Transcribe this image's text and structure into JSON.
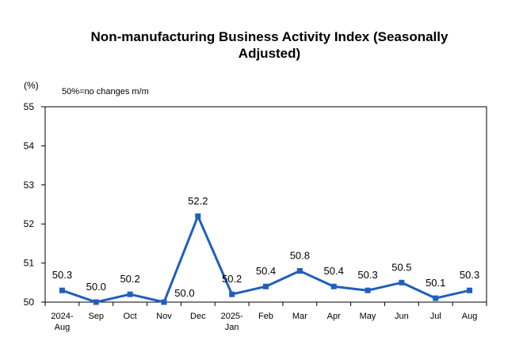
{
  "chart_data": {
    "type": "line",
    "title_line1": "Non-manufacturing Business Activity Index (Seasonally",
    "title_line2": "Adjusted)",
    "unit": "(%)",
    "note": "50%=no changes m/m",
    "categories": [
      [
        "2024-",
        "Aug"
      ],
      [
        "Sep"
      ],
      [
        "Oct"
      ],
      [
        "Nov"
      ],
      [
        "Dec"
      ],
      [
        "2025-",
        "Jan"
      ],
      [
        "Feb"
      ],
      [
        "Mar"
      ],
      [
        "Apr"
      ],
      [
        "May"
      ],
      [
        "Jun"
      ],
      [
        "Jul"
      ],
      [
        "Aug"
      ]
    ],
    "values": [
      50.3,
      50.0,
      50.2,
      50.0,
      52.2,
      50.2,
      50.4,
      50.8,
      50.4,
      50.3,
      50.5,
      50.1,
      50.3
    ],
    "data_labels": [
      "50.3",
      "50.0",
      "50.2",
      "50.0",
      "52.2",
      "50.2",
      "50.4",
      "50.8",
      "50.4",
      "50.3",
      "50.5",
      "50.1",
      "50.3"
    ],
    "ylim": [
      50,
      55
    ],
    "yticks": [
      "50",
      "51",
      "52",
      "53",
      "54",
      "55"
    ],
    "grid": false,
    "series_color": "#1f5fbf"
  }
}
